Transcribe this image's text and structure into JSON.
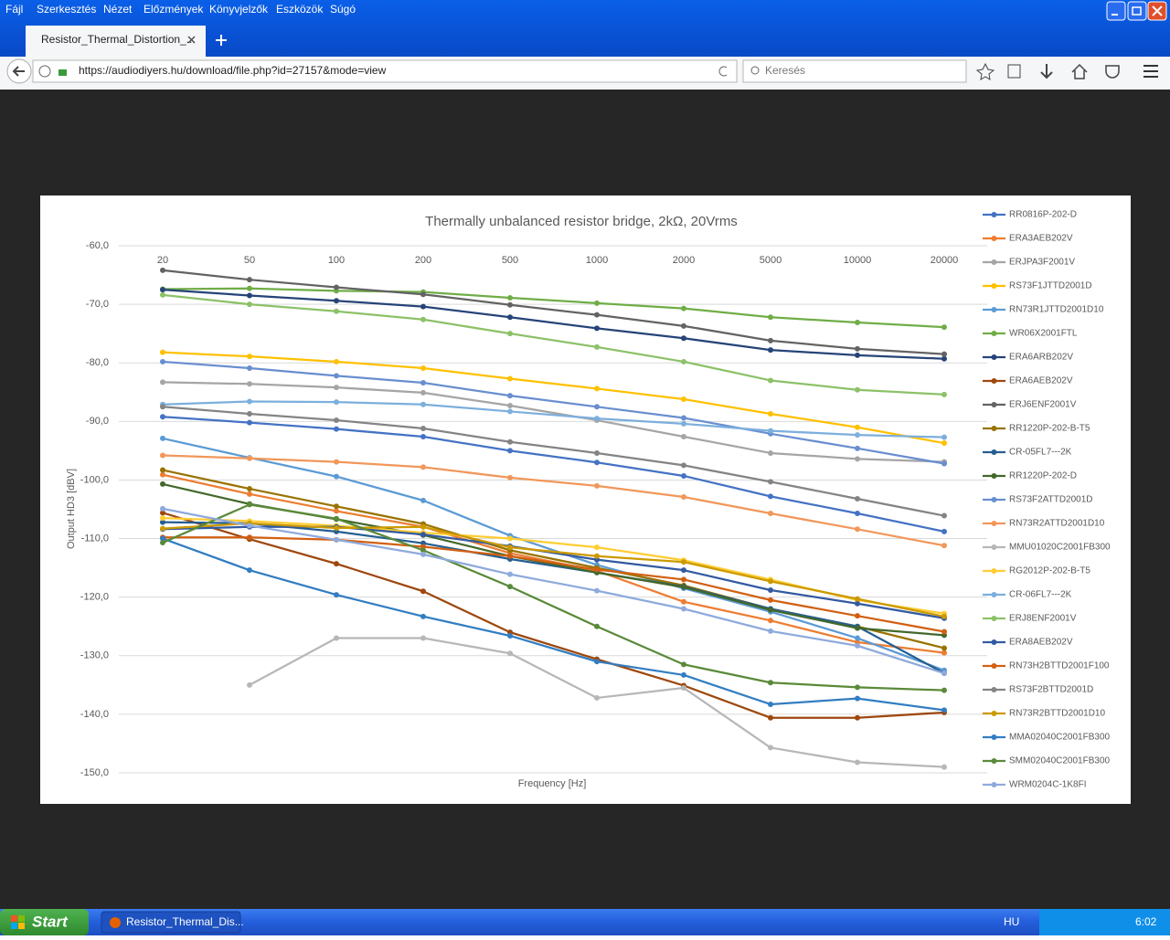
{
  "browser": {
    "menu": [
      "Fájl",
      "Szerkesztés",
      "Nézet",
      "Előzmények",
      "Könyvjelzők",
      "Eszközök",
      "Súgó"
    ],
    "tab_title": "Resistor_Thermal_Distortion_...",
    "url": "https://audiodiyers.hu/download/file.php?id=27157&mode=view",
    "search_placeholder": "Keresés",
    "taskbar": {
      "start": "Start",
      "task": "Resistor_Thermal_Dis...",
      "language": "HU",
      "clock": "6:02"
    }
  },
  "chart_data": {
    "type": "line",
    "title": "Thermally unbalanced resistor bridge, 2kΩ, 20Vrms",
    "x_label": "Frequency [Hz]",
    "y_label": "Output HD3 [dBV]",
    "categories": [
      "20",
      "50",
      "100",
      "200",
      "500",
      "1000",
      "2000",
      "5000",
      "10000",
      "20000"
    ],
    "ylim": [
      -150,
      -60
    ],
    "yticks": [
      {
        "value": -60,
        "label": "-60,0"
      },
      {
        "value": -70,
        "label": "-70,0"
      },
      {
        "value": -80,
        "label": "-80,0"
      },
      {
        "value": -90,
        "label": "-90,0"
      },
      {
        "value": -100,
        "label": "-100,0"
      },
      {
        "value": -110,
        "label": "-110,0"
      },
      {
        "value": -120,
        "label": "-120,0"
      },
      {
        "value": -130,
        "label": "-130,0"
      },
      {
        "value": -140,
        "label": "-140,0"
      },
      {
        "value": -150,
        "label": "-150,0"
      }
    ],
    "grid": true,
    "legend": "right",
    "series": [
      {
        "name": "RR0816P-202-D",
        "color": "#4472c4",
        "values": [
          -89.2,
          -90.2,
          -91.3,
          -92.6,
          -95.0,
          -97.0,
          -99.3,
          -102.8,
          -105.7,
          -108.8
        ]
      },
      {
        "name": "ERA3AEB202V",
        "color": "#ed7d31",
        "values": [
          -99.1,
          -102.4,
          -105.3,
          -108.0,
          -112.5,
          -115.5,
          -120.8,
          -124.0,
          -127.7,
          -129.5
        ]
      },
      {
        "name": "ERJPA3F2001V",
        "color": "#a5a5a5",
        "values": [
          -83.3,
          -83.6,
          -84.2,
          -85.1,
          -87.3,
          -89.8,
          -92.6,
          -95.4,
          -96.4,
          -96.9
        ]
      },
      {
        "name": "RS73F1JTTD2001D",
        "color": "#ffc000",
        "values": [
          -78.2,
          -78.9,
          -79.8,
          -80.9,
          -82.7,
          -84.4,
          -86.2,
          -88.7,
          -91.0,
          -93.7
        ]
      },
      {
        "name": "RN73R1JTTD2001D10",
        "color": "#5b9bd5",
        "values": [
          -92.9,
          -96.2,
          -99.4,
          -103.5,
          -109.5,
          -114.5,
          -118.5,
          -122.5,
          -127.0,
          -132.5
        ]
      },
      {
        "name": "WR06X2001FTL",
        "color": "#70ad47",
        "values": [
          -67.4,
          -67.3,
          -67.7,
          -67.9,
          -68.9,
          -69.8,
          -70.7,
          -72.2,
          -73.1,
          -73.9
        ]
      },
      {
        "name": "ERA6ARB202V",
        "color": "#264478",
        "values": [
          -67.5,
          -68.5,
          -69.4,
          -70.4,
          -72.2,
          -74.1,
          -75.8,
          -77.8,
          -78.7,
          -79.3
        ]
      },
      {
        "name": "ERA6AEB202V",
        "color": "#9e480e",
        "values": [
          -105.6,
          -110.1,
          -114.3,
          -119.0,
          -126.0,
          -130.6,
          -135.1,
          -140.6,
          -140.6,
          -139.7
        ]
      },
      {
        "name": "ERJ6ENF2001V",
        "color": "#636363",
        "values": [
          -64.2,
          -65.8,
          -67.1,
          -68.3,
          -70.1,
          -71.8,
          -73.7,
          -76.2,
          -77.6,
          -78.5
        ]
      },
      {
        "name": "RR1220P-202-B-T5",
        "color": "#997300",
        "values": [
          -98.3,
          -101.5,
          -104.5,
          -107.5,
          -112.0,
          -115.0,
          -118.0,
          -122.0,
          -125.0,
          -128.7
        ]
      },
      {
        "name": "CR-05FL7---2K",
        "color": "#255e91",
        "values": [
          -107.2,
          -107.4,
          -108.8,
          -110.8,
          -113.5,
          -115.8,
          -118.2,
          -122.0,
          -125.0,
          -133.0
        ]
      },
      {
        "name": "RR1220P-202-D",
        "color": "#43682b",
        "values": [
          -100.7,
          -104.1,
          -106.7,
          -109.4,
          -113.0,
          -115.8,
          -118.3,
          -122.2,
          -125.3,
          -126.5
        ]
      },
      {
        "name": "RS73F2ATTD2001D",
        "color": "#698ed0",
        "values": [
          -79.8,
          -80.9,
          -82.2,
          -83.4,
          -85.6,
          -87.5,
          -89.4,
          -92.1,
          -94.6,
          -97.2
        ]
      },
      {
        "name": "RN73R2ATTD2001D10",
        "color": "#f1975a",
        "values": [
          -95.8,
          -96.3,
          -96.9,
          -97.8,
          -99.6,
          -101.0,
          -102.9,
          -105.7,
          -108.4,
          -111.2
        ]
      },
      {
        "name": "MMU01020C2001FB300",
        "color": "#b7b7b7",
        "values": [
          null,
          -135.0,
          -127.0,
          -127.0,
          -129.6,
          -137.2,
          -135.5,
          -145.7,
          -148.2,
          -149.0
        ]
      },
      {
        "name": "RG2012P-202-B-T5",
        "color": "#ffcd33",
        "values": [
          -106.5,
          -107.0,
          -107.8,
          -109.0,
          -110.0,
          -111.5,
          -113.7,
          -117.0,
          -120.5,
          -122.8
        ]
      },
      {
        "name": "CR-06FL7---2K",
        "color": "#7cafdd",
        "values": [
          -87.1,
          -86.6,
          -86.7,
          -87.1,
          -88.3,
          -89.5,
          -90.4,
          -91.6,
          -92.3,
          -92.7
        ]
      },
      {
        "name": "ERJ8ENF2001V",
        "color": "#8cc168",
        "values": [
          -68.4,
          -70.0,
          -71.2,
          -72.6,
          -75.0,
          -77.3,
          -79.8,
          -83.0,
          -84.6,
          -85.4
        ]
      },
      {
        "name": "ERA8AEB202V",
        "color": "#335aa1",
        "values": [
          -108.4,
          -108.0,
          -108.0,
          -109.3,
          -111.3,
          -113.6,
          -115.4,
          -118.8,
          -121.1,
          -123.6
        ]
      },
      {
        "name": "RN73H2BTTD2001F100",
        "color": "#d26012",
        "values": [
          -109.8,
          -109.8,
          -110.2,
          -111.4,
          -113.0,
          -115.3,
          -117.0,
          -120.5,
          -123.2,
          -125.9
        ]
      },
      {
        "name": "RS73F2BTTD2001D",
        "color": "#848484",
        "values": [
          -87.5,
          -88.7,
          -89.8,
          -91.2,
          -93.5,
          -95.4,
          -97.5,
          -100.3,
          -103.2,
          -106.1
        ]
      },
      {
        "name": "RN73R2BTTD2001D10",
        "color": "#cc9a00",
        "values": [
          -108.3,
          -107.4,
          -108.2,
          -108.0,
          -111.5,
          -113.0,
          -114.0,
          -117.3,
          -120.3,
          -123.3
        ]
      },
      {
        "name": "MMA02040C2001FB300",
        "color": "#327dc2",
        "values": [
          -110.0,
          -115.4,
          -119.6,
          -123.3,
          -126.6,
          -131.0,
          -133.3,
          -138.3,
          -137.3,
          -139.3
        ]
      },
      {
        "name": "SMM02040C2001FB300",
        "color": "#5a8a39",
        "values": [
          -110.7,
          -104.2,
          -106.6,
          -112.0,
          -118.2,
          -125.0,
          -131.5,
          -134.6,
          -135.4,
          -135.9
        ]
      },
      {
        "name": "WRM0204C-1K8FI",
        "color": "#8faadc",
        "values": [
          -104.9,
          -107.8,
          -110.2,
          -112.7,
          -116.1,
          -118.9,
          -122.0,
          -125.8,
          -128.3,
          -133.0
        ]
      }
    ]
  }
}
